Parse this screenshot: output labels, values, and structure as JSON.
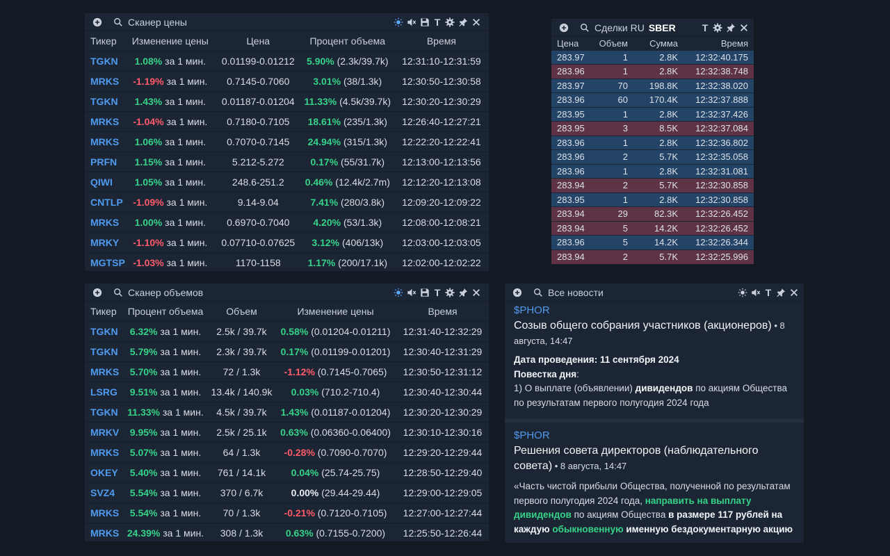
{
  "price_scanner": {
    "title": "Сканер цены",
    "headers": [
      "Тикер",
      "Изменение цены",
      "Цена",
      "Процент объема",
      "Время"
    ],
    "rows": [
      {
        "ticker": "TGKN",
        "change": "1.08%",
        "dir": "pos",
        "interval": "за 1 мин.",
        "price": "0.01199-0.01212",
        "vol_pct": "5.90%",
        "vol": "(2.3k/39.7k)",
        "time": "12:31:10-12:31:59"
      },
      {
        "ticker": "MRKS",
        "change": "-1.19%",
        "dir": "neg",
        "interval": "за 1 мин.",
        "price": "0.7145-0.7060",
        "vol_pct": "3.01%",
        "vol": "(38/1.3k)",
        "time": "12:30:50-12:30:58"
      },
      {
        "ticker": "TGKN",
        "change": "1.43%",
        "dir": "pos",
        "interval": "за 1 мин.",
        "price": "0.01187-0.01204",
        "vol_pct": "11.33%",
        "vol": "(4.5k/39.7k)",
        "time": "12:30:20-12:30:29"
      },
      {
        "ticker": "MRKS",
        "change": "-1.04%",
        "dir": "neg",
        "interval": "за 1 мин.",
        "price": "0.7180-0.7105",
        "vol_pct": "18.61%",
        "vol": "(235/1.3k)",
        "time": "12:26:40-12:27:21"
      },
      {
        "ticker": "MRKS",
        "change": "1.06%",
        "dir": "pos",
        "interval": "за 1 мин.",
        "price": "0.7070-0.7145",
        "vol_pct": "24.94%",
        "vol": "(315/1.3k)",
        "time": "12:22:20-12:22:41"
      },
      {
        "ticker": "PRFN",
        "change": "1.15%",
        "dir": "pos",
        "interval": "за 1 мин.",
        "price": "5.212-5.272",
        "vol_pct": "0.17%",
        "vol": "(55/31.7k)",
        "time": "12:13:00-12:13:56"
      },
      {
        "ticker": "QIWI",
        "change": "1.05%",
        "dir": "pos",
        "interval": "за 1 мин.",
        "price": "248.6-251.2",
        "vol_pct": "0.46%",
        "vol": "(12.4k/2.7m)",
        "time": "12:12:20-12:13:08"
      },
      {
        "ticker": "CNTLP",
        "change": "-1.09%",
        "dir": "neg",
        "interval": "за 1 мин.",
        "price": "9.14-9.04",
        "vol_pct": "7.41%",
        "vol": "(280/3.8k)",
        "time": "12:09:20-12:09:22"
      },
      {
        "ticker": "MRKS",
        "change": "1.00%",
        "dir": "pos",
        "interval": "за 1 мин.",
        "price": "0.6970-0.7040",
        "vol_pct": "4.20%",
        "vol": "(53/1.3k)",
        "time": "12:08:00-12:08:21"
      },
      {
        "ticker": "MRKY",
        "change": "-1.10%",
        "dir": "neg",
        "interval": "за 1 мин.",
        "price": "0.07710-0.07625",
        "vol_pct": "3.12%",
        "vol": "(406/13k)",
        "time": "12:03:00-12:03:05"
      },
      {
        "ticker": "MGTSP",
        "change": "-1.03%",
        "dir": "neg",
        "interval": "за 1 мин.",
        "price": "1170-1158",
        "vol_pct": "1.17%",
        "vol": "(200/17.1k)",
        "time": "12:02:00-12:02:22"
      }
    ]
  },
  "volume_scanner": {
    "title": "Сканер объемов",
    "headers": [
      "Тикер",
      "Процент объема",
      "Объем",
      "Изменение цены",
      "Время"
    ],
    "rows": [
      {
        "ticker": "TGKN",
        "vol_pct": "6.32%",
        "interval": "за 1 мин.",
        "volume": "2.5k / 39.7k",
        "change": "0.58%",
        "dir": "pos",
        "range": "(0.01204-0.01211)",
        "time": "12:31:40-12:32:29"
      },
      {
        "ticker": "TGKN",
        "vol_pct": "5.79%",
        "interval": "за 1 мин.",
        "volume": "2.3k / 39.7k",
        "change": "0.17%",
        "dir": "pos",
        "range": "(0.01199-0.01201)",
        "time": "12:30:40-12:31:29"
      },
      {
        "ticker": "MRKS",
        "vol_pct": "5.70%",
        "interval": "за 1 мин.",
        "volume": "72 / 1.3k",
        "change": "-1.12%",
        "dir": "neg",
        "range": "(0.7145-0.7065)",
        "time": "12:30:50-12:31:12"
      },
      {
        "ticker": "LSRG",
        "vol_pct": "9.51%",
        "interval": "за 1 мин.",
        "volume": "13.4k / 140.9k",
        "change": "0.03%",
        "dir": "pos",
        "range": "(710.2-710.4)",
        "time": "12:30:40-12:30:44"
      },
      {
        "ticker": "TGKN",
        "vol_pct": "11.33%",
        "interval": "за 1 мин.",
        "volume": "4.5k / 39.7k",
        "change": "1.43%",
        "dir": "pos",
        "range": "(0.01187-0.01204)",
        "time": "12:30:20-12:30:29"
      },
      {
        "ticker": "MRKV",
        "vol_pct": "9.95%",
        "interval": "за 1 мин.",
        "volume": "2.5k / 25.1k",
        "change": "0.63%",
        "dir": "pos",
        "range": "(0.06360-0.06400)",
        "time": "12:30:10-12:30:16"
      },
      {
        "ticker": "MRKS",
        "vol_pct": "5.07%",
        "interval": "за 1 мин.",
        "volume": "64 / 1.3k",
        "change": "-0.28%",
        "dir": "neg",
        "range": "(0.7090-0.7070)",
        "time": "12:29:20-12:29:44"
      },
      {
        "ticker": "OKEY",
        "vol_pct": "5.40%",
        "interval": "за 1 мин.",
        "volume": "761 / 14.1k",
        "change": "0.04%",
        "dir": "pos",
        "range": "(25.74-25.75)",
        "time": "12:28:50-12:29:40"
      },
      {
        "ticker": "SVZ4",
        "vol_pct": "5.54%",
        "interval": "за 1 мин.",
        "volume": "370 / 6.7k",
        "change": "0.00%",
        "dir": "zero",
        "range": "(29.44-29.44)",
        "time": "12:29:00-12:29:05"
      },
      {
        "ticker": "MRKS",
        "vol_pct": "5.54%",
        "interval": "за 1 мин.",
        "volume": "70 / 1.3k",
        "change": "-0.21%",
        "dir": "neg",
        "range": "(0.7120-0.7105)",
        "time": "12:27:00-12:27:44"
      },
      {
        "ticker": "MRKS",
        "vol_pct": "24.39%",
        "interval": "за 1 мин.",
        "volume": "308 / 1.3k",
        "change": "0.63%",
        "dir": "pos",
        "range": "(0.7155-0.7200)",
        "time": "12:25:50-12:26:44"
      }
    ]
  },
  "trades": {
    "title": "Сделки RU",
    "ticker": "SBER",
    "headers": [
      "Цена",
      "Объем",
      "Сумма",
      "Время"
    ],
    "colors": {
      "buy": "#244467",
      "sell": "#5e3346"
    },
    "rows": [
      {
        "price": "283.97",
        "volume": "1",
        "sum": "2.8K",
        "time": "12:32:40.175",
        "side": "buy"
      },
      {
        "price": "283.96",
        "volume": "1",
        "sum": "2.8K",
        "time": "12:32:38.748",
        "side": "sell"
      },
      {
        "price": "283.97",
        "volume": "70",
        "sum": "198.8K",
        "time": "12:32:38.020",
        "side": "buy"
      },
      {
        "price": "283.96",
        "volume": "60",
        "sum": "170.4K",
        "time": "12:32:37.888",
        "side": "buy"
      },
      {
        "price": "283.95",
        "volume": "1",
        "sum": "2.8K",
        "time": "12:32:37.426",
        "side": "buy"
      },
      {
        "price": "283.95",
        "volume": "3",
        "sum": "8.5K",
        "time": "12:32:37.084",
        "side": "sell"
      },
      {
        "price": "283.96",
        "volume": "1",
        "sum": "2.8K",
        "time": "12:32:36.802",
        "side": "buy"
      },
      {
        "price": "283.96",
        "volume": "2",
        "sum": "5.7K",
        "time": "12:32:35.058",
        "side": "buy"
      },
      {
        "price": "283.96",
        "volume": "1",
        "sum": "2.8K",
        "time": "12:32:31.081",
        "side": "buy"
      },
      {
        "price": "283.94",
        "volume": "2",
        "sum": "5.7K",
        "time": "12:32:30.858",
        "side": "sell"
      },
      {
        "price": "283.95",
        "volume": "1",
        "sum": "2.8K",
        "time": "12:32:30.858",
        "side": "buy"
      },
      {
        "price": "283.94",
        "volume": "29",
        "sum": "82.3K",
        "time": "12:32:26.452",
        "side": "sell"
      },
      {
        "price": "283.94",
        "volume": "5",
        "sum": "14.2K",
        "time": "12:32:26.452",
        "side": "sell"
      },
      {
        "price": "283.96",
        "volume": "5",
        "sum": "14.2K",
        "time": "12:32:26.344",
        "side": "buy"
      },
      {
        "price": "283.94",
        "volume": "2",
        "sum": "5.7K",
        "time": "12:32:25.996",
        "side": "sell"
      }
    ]
  },
  "news": {
    "title": "Все новости",
    "items": [
      {
        "ticker": "$PHOR",
        "title": "Созыв общего собрания участников (акционеров)",
        "sep": " • ",
        "date": "8 августа, 14:47",
        "l1_label": "Дата проведения",
        "l1_colon": ": ",
        "l1_value": "11 сентября 2024",
        "l2_label": "Повестка дня",
        "l2_colon": ":",
        "l3_a": "1) О выплате (объявлении) ",
        "l3_b": "дивидендов",
        "l3_c": " по акциям Общества по результатам первого полугодия 2024 года"
      },
      {
        "ticker": "$PHOR",
        "title": "Решения совета директоров (наблюдательного совета)",
        "sep": " • ",
        "date": "8 августа, 14:47",
        "p_a": "«Часть чистой прибыли Общества, полученной по результатам первого полугодия 2024 года, ",
        "p_b": "направить на выплату дивидендов",
        "p_c": " по акциям Общества ",
        "p_d": "в размере 117 рублей на каждую ",
        "p_e": "обыкновенную",
        "p_f": " именную бездокументарную акцию"
      }
    ]
  },
  "icons": {
    "add": "plus-circle-icon",
    "search": "search-icon",
    "theme": "sun-icon",
    "sound": "mute-icon",
    "save": "save-icon",
    "text": "T",
    "settings": "gear-icon",
    "pin": "pin-icon",
    "close": "close-icon"
  },
  "text_icon_label": "T",
  "accent_color": "#4f9bf0",
  "positive_color": "#35d38a",
  "negative_color": "#ff5b6a"
}
